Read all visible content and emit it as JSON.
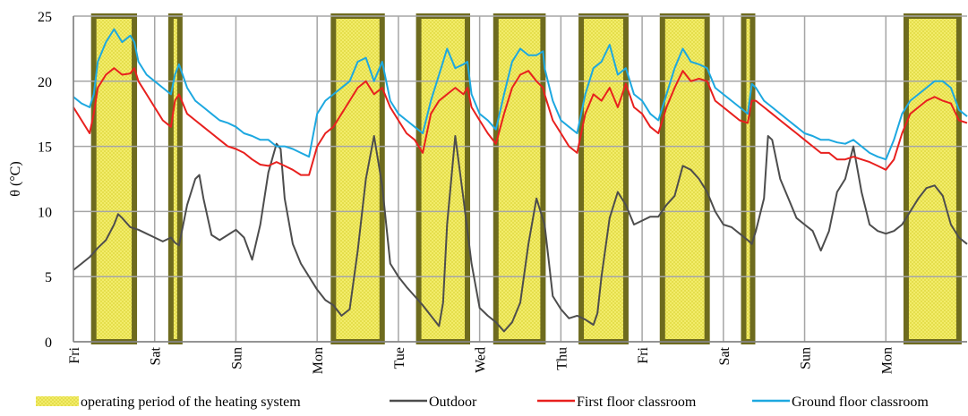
{
  "chart_data": {
    "type": "line",
    "title": "",
    "xlabel": "",
    "ylabel": "θ (°C)",
    "ylim": [
      0,
      25
    ],
    "yticks": [
      0,
      5,
      10,
      15,
      20,
      25
    ],
    "xlim": [
      0,
      11
    ],
    "day_labels": [
      "Fri",
      "Sat",
      "Sun",
      "Mon",
      "Tue",
      "Wed",
      "Thu",
      "Fri",
      "Sat",
      "Sun",
      "Mon"
    ],
    "grid": true,
    "legend_position": "bottom",
    "heating_periods": [
      [
        0.25,
        0.75
      ],
      [
        1.2,
        1.31
      ],
      [
        3.2,
        3.8
      ],
      [
        4.25,
        4.85
      ],
      [
        5.2,
        5.78
      ],
      [
        6.25,
        6.8
      ],
      [
        7.25,
        7.8
      ],
      [
        8.25,
        8.36
      ],
      [
        10.25,
        10.9
      ]
    ],
    "series": [
      {
        "name": "Outdoor",
        "color": "#4d4d4d",
        "x": [
          0.0,
          0.1,
          0.2,
          0.3,
          0.4,
          0.5,
          0.55,
          0.6,
          0.7,
          0.8,
          0.9,
          1.0,
          1.1,
          1.2,
          1.25,
          1.3,
          1.4,
          1.5,
          1.55,
          1.6,
          1.7,
          1.8,
          1.9,
          2.0,
          2.1,
          2.2,
          2.3,
          2.4,
          2.5,
          2.55,
          2.6,
          2.7,
          2.8,
          2.9,
          3.0,
          3.1,
          3.2,
          3.3,
          3.4,
          3.5,
          3.6,
          3.7,
          3.8,
          3.9,
          4.0,
          4.1,
          4.2,
          4.3,
          4.4,
          4.5,
          4.55,
          4.6,
          4.7,
          4.8,
          4.9,
          5.0,
          5.1,
          5.2,
          5.3,
          5.4,
          5.5,
          5.6,
          5.7,
          5.8,
          5.9,
          6.0,
          6.1,
          6.2,
          6.3,
          6.4,
          6.45,
          6.5,
          6.6,
          6.7,
          6.8,
          6.9,
          7.0,
          7.1,
          7.2,
          7.3,
          7.4,
          7.5,
          7.6,
          7.7,
          7.8,
          7.9,
          8.0,
          8.1,
          8.2,
          8.3,
          8.35,
          8.4,
          8.5,
          8.55,
          8.6,
          8.7,
          8.8,
          8.9,
          9.0,
          9.1,
          9.2,
          9.3,
          9.4,
          9.5,
          9.6,
          9.7,
          9.8,
          9.9,
          10.0,
          10.1,
          10.2,
          10.3,
          10.4,
          10.5,
          10.6,
          10.7,
          10.8,
          10.9,
          11.0
        ],
        "values": [
          5.5,
          6.0,
          6.5,
          7.2,
          7.8,
          9.0,
          9.8,
          9.5,
          8.8,
          8.6,
          8.3,
          8.0,
          7.7,
          8.0,
          7.6,
          7.4,
          10.5,
          12.5,
          12.8,
          11.0,
          8.2,
          7.8,
          8.2,
          8.6,
          8.0,
          6.3,
          9.0,
          13.0,
          15.2,
          14.8,
          11.0,
          7.5,
          6.0,
          5.0,
          4.0,
          3.2,
          2.8,
          2.0,
          2.5,
          7.0,
          12.5,
          15.8,
          12.0,
          6.0,
          5.0,
          4.2,
          3.5,
          2.8,
          2.0,
          1.2,
          3.0,
          9.0,
          15.8,
          11.0,
          6.0,
          2.6,
          2.0,
          1.5,
          0.8,
          1.5,
          3.0,
          7.5,
          11.0,
          9.0,
          3.5,
          2.5,
          1.8,
          2.0,
          1.7,
          1.3,
          2.2,
          5.0,
          9.5,
          11.5,
          10.5,
          9.0,
          9.3,
          9.6,
          9.6,
          10.5,
          11.2,
          13.5,
          13.2,
          12.5,
          11.5,
          10.0,
          9.0,
          8.8,
          8.3,
          7.8,
          7.5,
          8.5,
          11.0,
          15.8,
          15.5,
          12.5,
          11.0,
          9.5,
          9.0,
          8.5,
          7.0,
          8.5,
          11.5,
          12.5,
          15.0,
          11.5,
          9.0,
          8.5,
          8.3,
          8.5,
          9.0,
          10.0,
          11.0,
          11.8,
          12.0,
          11.2,
          9.0,
          8.0,
          7.5
        ]
      },
      {
        "name": "First floor classroom",
        "color": "#e8201e",
        "x": [
          0.0,
          0.1,
          0.2,
          0.25,
          0.3,
          0.4,
          0.5,
          0.6,
          0.7,
          0.75,
          0.8,
          0.9,
          1.0,
          1.1,
          1.2,
          1.25,
          1.3,
          1.4,
          1.5,
          1.6,
          1.7,
          1.8,
          1.9,
          2.0,
          2.1,
          2.2,
          2.3,
          2.4,
          2.5,
          2.6,
          2.7,
          2.8,
          2.9,
          3.0,
          3.1,
          3.2,
          3.3,
          3.4,
          3.5,
          3.6,
          3.7,
          3.8,
          3.9,
          4.0,
          4.1,
          4.2,
          4.3,
          4.4,
          4.5,
          4.6,
          4.7,
          4.8,
          4.85,
          4.9,
          5.0,
          5.1,
          5.2,
          5.3,
          5.4,
          5.5,
          5.6,
          5.7,
          5.78,
          5.8,
          5.9,
          6.0,
          6.1,
          6.2,
          6.3,
          6.4,
          6.5,
          6.6,
          6.7,
          6.8,
          6.9,
          7.0,
          7.1,
          7.2,
          7.3,
          7.4,
          7.5,
          7.6,
          7.7,
          7.8,
          7.9,
          8.0,
          8.1,
          8.2,
          8.3,
          8.35,
          8.4,
          8.5,
          8.6,
          8.7,
          8.8,
          8.9,
          9.0,
          9.1,
          9.2,
          9.3,
          9.4,
          9.5,
          9.6,
          9.7,
          9.8,
          9.9,
          10.0,
          10.1,
          10.2,
          10.3,
          10.4,
          10.5,
          10.6,
          10.7,
          10.8,
          10.9,
          11.0
        ],
        "values": [
          18.0,
          17.0,
          16.0,
          17.5,
          19.5,
          20.5,
          21.0,
          20.5,
          20.6,
          21.0,
          20.0,
          19.0,
          18.0,
          17.0,
          16.5,
          18.5,
          19.0,
          17.5,
          17.0,
          16.5,
          16.0,
          15.5,
          15.0,
          14.8,
          14.5,
          14.0,
          13.6,
          13.5,
          13.8,
          13.5,
          13.2,
          12.8,
          12.8,
          15.0,
          16.0,
          16.5,
          17.5,
          18.5,
          19.5,
          20.0,
          19.0,
          19.5,
          18.0,
          17.0,
          16.0,
          15.5,
          14.5,
          17.5,
          18.5,
          19.0,
          19.5,
          19.0,
          19.5,
          18.0,
          17.0,
          16.0,
          15.2,
          17.5,
          19.5,
          20.5,
          20.8,
          20.0,
          19.5,
          19.0,
          17.0,
          16.0,
          15.0,
          14.5,
          17.5,
          19.0,
          18.5,
          19.5,
          18.0,
          19.8,
          18.0,
          17.5,
          16.5,
          16.0,
          18.0,
          19.5,
          20.8,
          20.0,
          20.2,
          20.0,
          18.5,
          18.0,
          17.5,
          17.0,
          16.8,
          18.5,
          18.5,
          18.0,
          17.5,
          17.0,
          16.5,
          16.0,
          15.5,
          15.0,
          14.5,
          14.5,
          14.0,
          14.0,
          14.2,
          14.0,
          13.8,
          13.5,
          13.2,
          14.0,
          16.0,
          17.5,
          18.0,
          18.5,
          18.8,
          18.5,
          18.3,
          17.0,
          16.8
        ]
      },
      {
        "name": "Ground floor classroom",
        "color": "#1da8e0",
        "x": [
          0.0,
          0.1,
          0.2,
          0.25,
          0.3,
          0.4,
          0.5,
          0.6,
          0.7,
          0.75,
          0.8,
          0.9,
          1.0,
          1.1,
          1.2,
          1.25,
          1.3,
          1.4,
          1.5,
          1.6,
          1.7,
          1.8,
          1.9,
          2.0,
          2.1,
          2.2,
          2.3,
          2.4,
          2.5,
          2.6,
          2.7,
          2.8,
          2.9,
          3.0,
          3.1,
          3.2,
          3.3,
          3.4,
          3.5,
          3.6,
          3.7,
          3.8,
          3.9,
          4.0,
          4.1,
          4.2,
          4.3,
          4.4,
          4.5,
          4.6,
          4.7,
          4.8,
          4.85,
          4.9,
          5.0,
          5.1,
          5.2,
          5.3,
          5.4,
          5.5,
          5.6,
          5.7,
          5.78,
          5.8,
          5.9,
          6.0,
          6.1,
          6.2,
          6.3,
          6.4,
          6.5,
          6.6,
          6.7,
          6.8,
          6.9,
          7.0,
          7.1,
          7.2,
          7.3,
          7.4,
          7.5,
          7.6,
          7.7,
          7.8,
          7.9,
          8.0,
          8.1,
          8.2,
          8.3,
          8.35,
          8.4,
          8.5,
          8.6,
          8.7,
          8.8,
          8.9,
          9.0,
          9.1,
          9.2,
          9.3,
          9.4,
          9.5,
          9.6,
          9.7,
          9.8,
          9.9,
          10.0,
          10.1,
          10.2,
          10.3,
          10.4,
          10.5,
          10.6,
          10.7,
          10.8,
          10.9,
          11.0
        ],
        "values": [
          18.8,
          18.3,
          18.0,
          19.0,
          21.5,
          23.0,
          24.0,
          23.0,
          23.5,
          23.0,
          21.5,
          20.5,
          20.0,
          19.5,
          19.0,
          20.5,
          21.3,
          19.5,
          18.5,
          18.0,
          17.5,
          17.0,
          16.8,
          16.5,
          16.0,
          15.8,
          15.5,
          15.5,
          15.0,
          15.0,
          14.8,
          14.5,
          14.2,
          17.5,
          18.5,
          19.0,
          19.5,
          20.0,
          21.5,
          21.8,
          20.0,
          21.5,
          18.5,
          17.5,
          17.0,
          16.5,
          16.0,
          18.5,
          20.5,
          22.5,
          21.0,
          21.3,
          21.5,
          19.0,
          17.5,
          17.0,
          16.3,
          19.0,
          21.5,
          22.5,
          22.0,
          22.0,
          22.3,
          21.0,
          18.5,
          17.0,
          16.5,
          16.0,
          19.0,
          21.0,
          21.5,
          22.8,
          20.5,
          21.0,
          19.0,
          18.5,
          17.5,
          17.0,
          19.0,
          21.0,
          22.5,
          21.5,
          21.3,
          21.0,
          19.5,
          19.0,
          18.5,
          18.0,
          17.5,
          19.8,
          19.5,
          18.5,
          18.0,
          17.5,
          17.0,
          16.5,
          16.0,
          15.8,
          15.5,
          15.5,
          15.3,
          15.2,
          15.5,
          15.0,
          14.5,
          14.2,
          14.0,
          15.5,
          17.5,
          18.5,
          19.0,
          19.5,
          20.0,
          20.0,
          19.5,
          17.8,
          17.3
        ]
      }
    ],
    "legend": [
      {
        "kind": "fill",
        "label": "operating period of the heating system"
      },
      {
        "kind": "line",
        "label": "Outdoor",
        "color": "#4d4d4d"
      },
      {
        "kind": "line",
        "label": "First floor classroom",
        "color": "#e8201e"
      },
      {
        "kind": "line",
        "label": "Ground floor classroom",
        "color": "#1da8e0"
      }
    ]
  }
}
